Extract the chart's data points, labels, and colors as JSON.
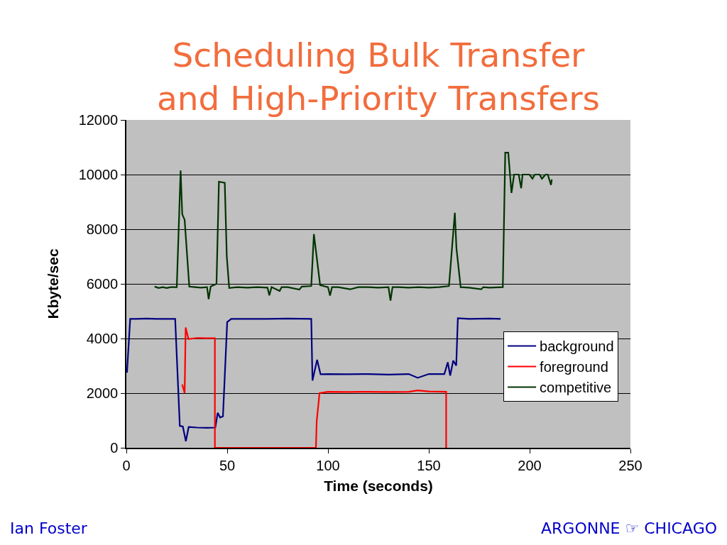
{
  "chart_data": {
    "type": "line",
    "title": "Scheduling Bulk Transfer\nand High-Priority Transfers",
    "xlabel": "Time (seconds)",
    "ylabel": "Kbyte/sec",
    "xlim": [
      0,
      250
    ],
    "xticks": [
      0,
      50,
      100,
      150,
      200,
      250
    ],
    "ylim": [
      0,
      12000
    ],
    "yticks": [
      0,
      2000,
      4000,
      6000,
      8000,
      10000,
      12000
    ],
    "grid": "y",
    "legend": "bottom right",
    "line_style": "solid",
    "series": [
      {
        "name": "background",
        "color": "#000080",
        "x": [
          0.3,
          1.9,
          5,
          10,
          15,
          20,
          24.2,
          26.5,
          28,
          29.5,
          30.9,
          35,
          40,
          44.1,
          45.3,
          46.5,
          47.9,
          50,
          52,
          60,
          70,
          80,
          91.7,
          92.3,
          94.6,
          96.3,
          100,
          110,
          120,
          130,
          140,
          144.5,
          150,
          157.7,
          159.4,
          160.6,
          162.1,
          163.6,
          164.4,
          170,
          180,
          185.6
        ],
        "values": [
          2750,
          4720,
          4720,
          4730,
          4720,
          4720,
          4720,
          800,
          780,
          240,
          760,
          740,
          730,
          740,
          1280,
          1110,
          1150,
          4600,
          4720,
          4720,
          4720,
          4730,
          4720,
          2460,
          3220,
          2690,
          2700,
          2690,
          2700,
          2680,
          2700,
          2560,
          2700,
          2700,
          3130,
          2640,
          3190,
          3010,
          4740,
          4720,
          4730,
          4720
        ]
      },
      {
        "name": "foreground",
        "color": "#ff0000",
        "x": [
          27.7,
          28.9,
          29.4,
          30.8,
          35,
          40,
          43.9,
          43.9,
          60,
          80,
          94,
          94.4,
          95.8,
          100,
          110,
          120,
          130,
          140,
          144.5,
          150,
          158.6,
          158.6
        ],
        "values": [
          2320,
          2000,
          4400,
          3980,
          4020,
          4010,
          4010,
          0,
          0,
          0,
          0,
          980,
          2000,
          2050,
          2040,
          2050,
          2040,
          2050,
          2100,
          2060,
          2050,
          0
        ]
      },
      {
        "name": "competitive",
        "color": "#003300",
        "x": [
          14,
          16,
          18,
          20,
          22,
          25,
          26.9,
          27.7,
          28.9,
          31.2,
          34,
          37,
          40,
          40.8,
          41.8,
          44.7,
          45.9,
          48.8,
          49.8,
          51,
          55,
          60,
          65,
          70,
          70.9,
          72,
          76,
          77,
          80,
          85.8,
          87,
          91.7,
          93,
          96.1,
          100,
          101,
          102,
          105,
          111,
          115,
          120,
          125,
          130,
          131,
          132,
          135,
          140,
          145,
          150,
          155,
          160,
          162.9,
          163.7,
          165.8,
          170,
          176,
          177,
          180,
          186.7,
          187.9,
          189.4,
          191,
          192.3,
          194.6,
          195.8,
          196.5,
          199.9,
          201.4,
          202.6,
          204.9,
          206.1,
          207.9,
          209,
          210.6,
          211
        ],
        "values": [
          5900,
          5850,
          5880,
          5850,
          5880,
          5880,
          10150,
          8550,
          8340,
          5900,
          5880,
          5860,
          5880,
          5440,
          5900,
          6000,
          9740,
          9700,
          7000,
          5850,
          5880,
          5860,
          5880,
          5860,
          5580,
          5880,
          5740,
          5880,
          5880,
          5790,
          5900,
          5920,
          7820,
          5950,
          5880,
          5570,
          5880,
          5880,
          5800,
          5880,
          5880,
          5860,
          5880,
          5390,
          5880,
          5880,
          5860,
          5880,
          5860,
          5880,
          5920,
          8600,
          7300,
          5880,
          5860,
          5800,
          5880,
          5860,
          5880,
          10800,
          10800,
          9330,
          10000,
          10000,
          9500,
          10000,
          10000,
          9850,
          10000,
          10000,
          9850,
          10000,
          10000,
          9620,
          9820
        ]
      }
    ],
    "annotations": [
      "Ian Foster",
      "ARGONNE ☞ CHICAGO"
    ]
  }
}
